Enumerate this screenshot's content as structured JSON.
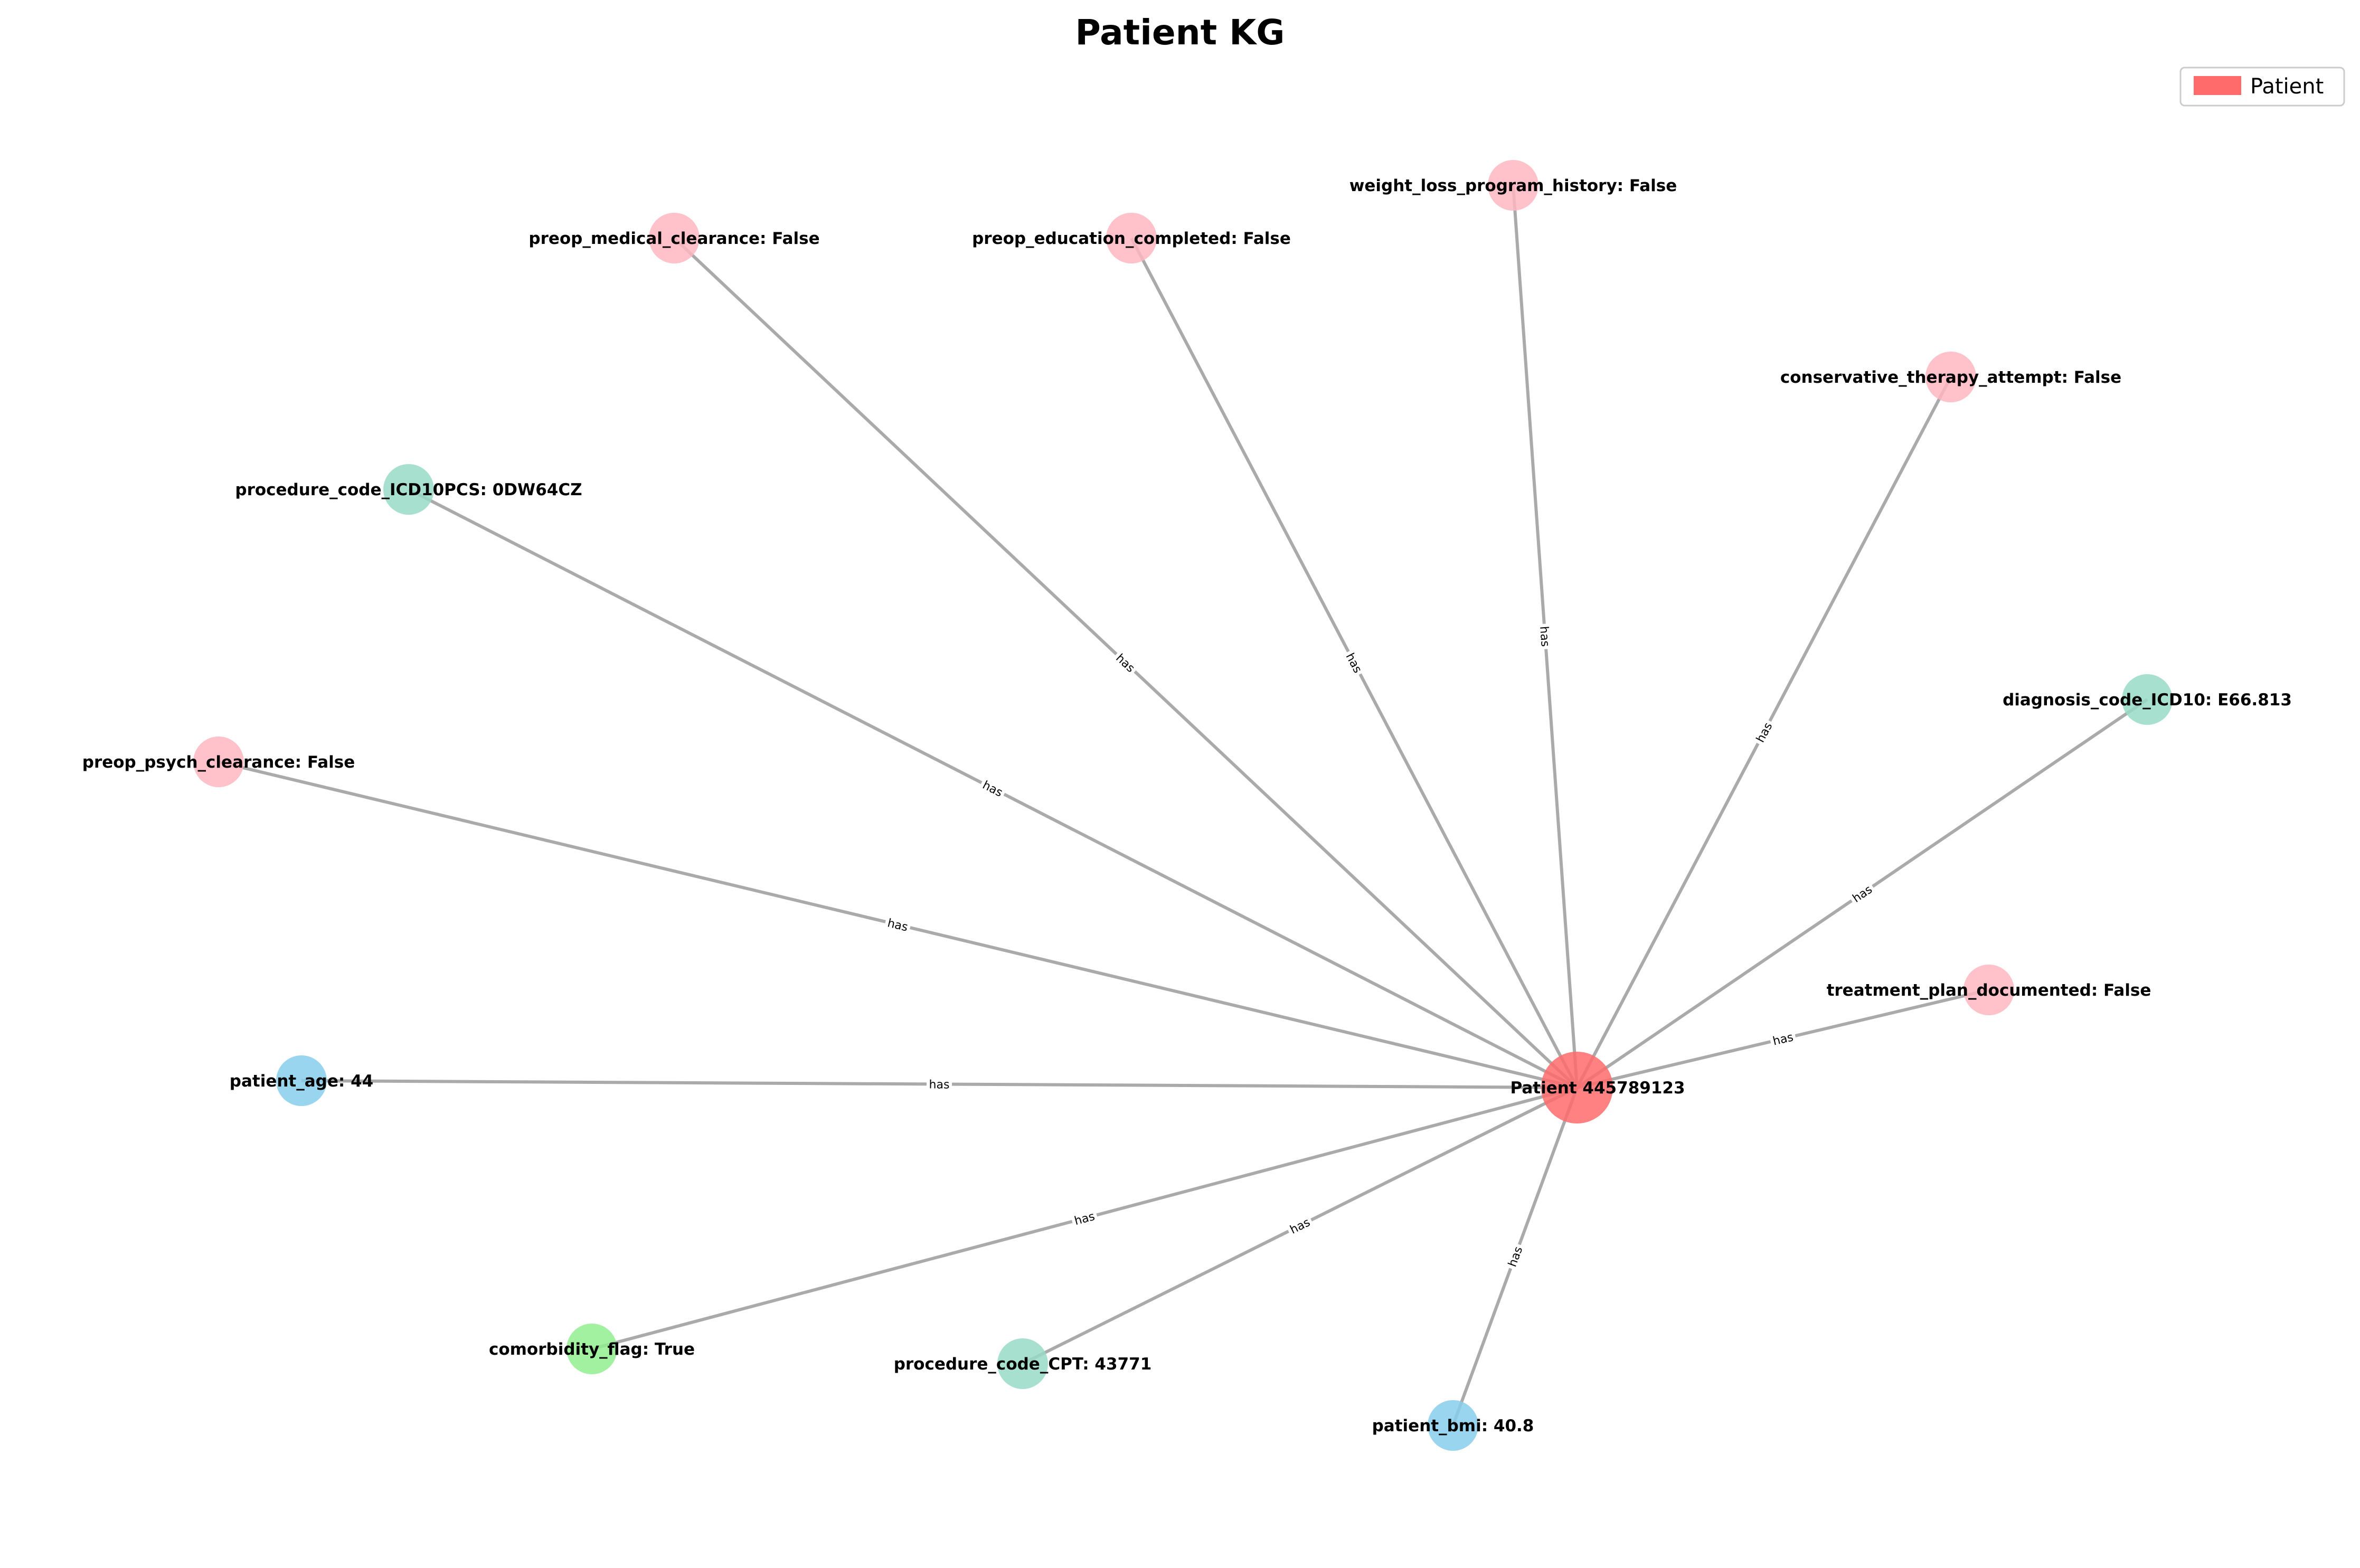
{
  "title": "Patient KG",
  "legend": {
    "label": "Patient",
    "color": "#ff6b6b",
    "placement": "top-right"
  },
  "colors": {
    "edge": "#aaaaaa",
    "center": "#ff6b6b",
    "pink": "#ffb6c1",
    "teal": "#98dbc6",
    "blue": "#87ceeb",
    "green": "#90ee90"
  },
  "center_node": {
    "label": "Patient 445789123",
    "color": "#ff6b6b"
  },
  "edge_label": "has",
  "nodes": [
    {
      "label": "weight_loss_program_history: False",
      "color": "#ffb6c1"
    },
    {
      "label": "preop_education_completed: False",
      "color": "#ffb6c1"
    },
    {
      "label": "preop_medical_clearance: False",
      "color": "#ffb6c1"
    },
    {
      "label": "conservative_therapy_attempt: False",
      "color": "#ffb6c1"
    },
    {
      "label": "procedure_code_ICD10PCS: 0DW64CZ",
      "color": "#98dbc6"
    },
    {
      "label": "diagnosis_code_ICD10: E66.813",
      "color": "#98dbc6"
    },
    {
      "label": "preop_psych_clearance: False",
      "color": "#ffb6c1"
    },
    {
      "label": "treatment_plan_documented: False",
      "color": "#ffb6c1"
    },
    {
      "label": "patient_age: 44",
      "color": "#87ceeb"
    },
    {
      "label": "comorbidity_flag: True",
      "color": "#90ee90"
    },
    {
      "label": "procedure_code_CPT: 43771",
      "color": "#98dbc6"
    },
    {
      "label": "patient_bmi: 40.8",
      "color": "#87ceeb"
    }
  ]
}
